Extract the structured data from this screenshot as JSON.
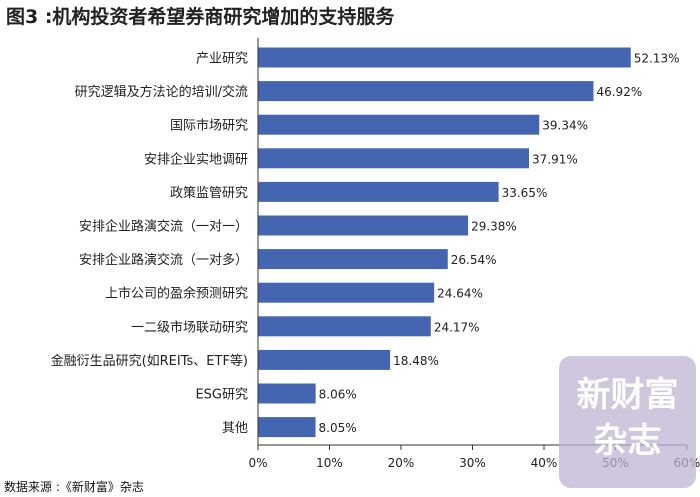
{
  "title": "图3 :机构投资者希望券商研究增加的支持服务",
  "source": "数据来源 :《新财富》杂志",
  "watermark": {
    "line1": "新财富",
    "line2": "杂志"
  },
  "colors": {
    "bar": "#4466b1",
    "axis": "#333333",
    "text": "#222222"
  },
  "chart_data": {
    "type": "bar",
    "orientation": "horizontal",
    "title": "图3 :机构投资者希望券商研究增加的支持服务",
    "categories": [
      "产业研究",
      "研究逻辑及方法论的培训/交流",
      "国际市场研究",
      "安排企业实地调研",
      "政策监管研究",
      "安排企业路演交流（一对一）",
      "安排企业路演交流（一对多）",
      "上市公司的盈余预测研究",
      "一二级市场联动研究",
      "金融衍生品研究(如REITs、ETF等)",
      "ESG研究",
      "其他"
    ],
    "values": [
      52.13,
      46.92,
      39.34,
      37.91,
      33.65,
      29.38,
      26.54,
      24.64,
      24.17,
      18.48,
      8.06,
      8.05
    ],
    "value_labels": [
      "52.13%",
      "46.92%",
      "39.34%",
      "37.91%",
      "33.65%",
      "29.38%",
      "26.54%",
      "24.64%",
      "24.17%",
      "18.48%",
      "8.06%",
      "8.05%"
    ],
    "xlim": [
      0,
      60
    ],
    "xticks": [
      0,
      10,
      20,
      30,
      40,
      50,
      60
    ],
    "xtick_labels": [
      "0%",
      "10%",
      "20%",
      "30%",
      "40%",
      "50%",
      "60%"
    ],
    "grid": false,
    "legend": "none"
  }
}
